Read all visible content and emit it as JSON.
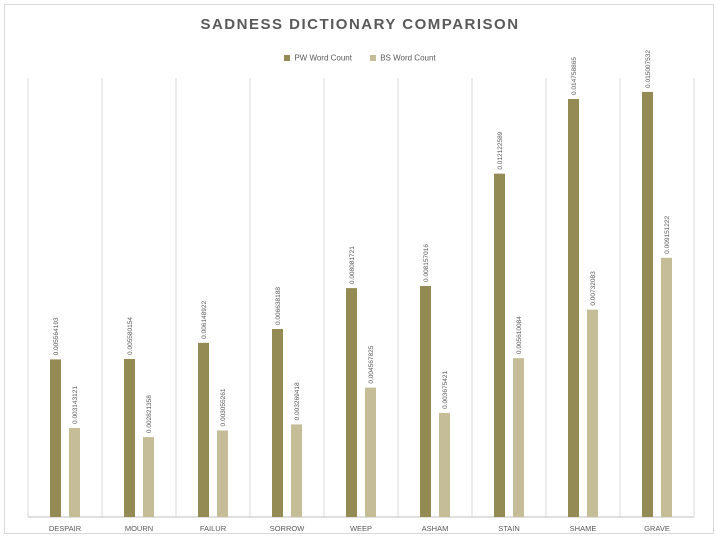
{
  "chart_data": {
    "type": "bar",
    "title": "SADNESS DICTIONARY COMPARISON",
    "categories": [
      "DESPAIR",
      "MOURN",
      "FAILUR",
      "SORROW",
      "WEEP",
      "ASHAM",
      "STAIN",
      "SHAME",
      "GRAVE"
    ],
    "series": [
      {
        "name": "PW Word Count",
        "color": "#948a54",
        "values": [
          0.005564193,
          0.005580154,
          0.006148922,
          0.006638188,
          0.008081721,
          0.008157016,
          0.012122589,
          0.014758865,
          0.015007532
        ],
        "labels": [
          "0.005564193",
          "0.005580154",
          "0.006148922",
          "0.006638188",
          "0.008081721",
          "0.008157016",
          "0.012122589",
          "0.014758865",
          "0.015007532"
        ]
      },
      {
        "name": "BS Word Count",
        "color": "#c4bd97",
        "values": [
          0.003143121,
          0.002821358,
          0.003055261,
          0.003269418,
          0.004567825,
          0.003675421,
          0.005610084,
          0.00732083,
          0.009151222
        ],
        "labels": [
          "0.003143121",
          "0.002821358",
          "0.003055261",
          "0.003269418",
          "0.004567825",
          "0.003675421",
          "0.005610084",
          "0.00732083",
          "0.009151222"
        ]
      }
    ],
    "xlabel": "",
    "ylabel": "",
    "ylim": [
      0,
      0.0155
    ],
    "grid": "vertical category separators",
    "legend_position": "top",
    "data_labels": "rotated vertical above bars"
  }
}
